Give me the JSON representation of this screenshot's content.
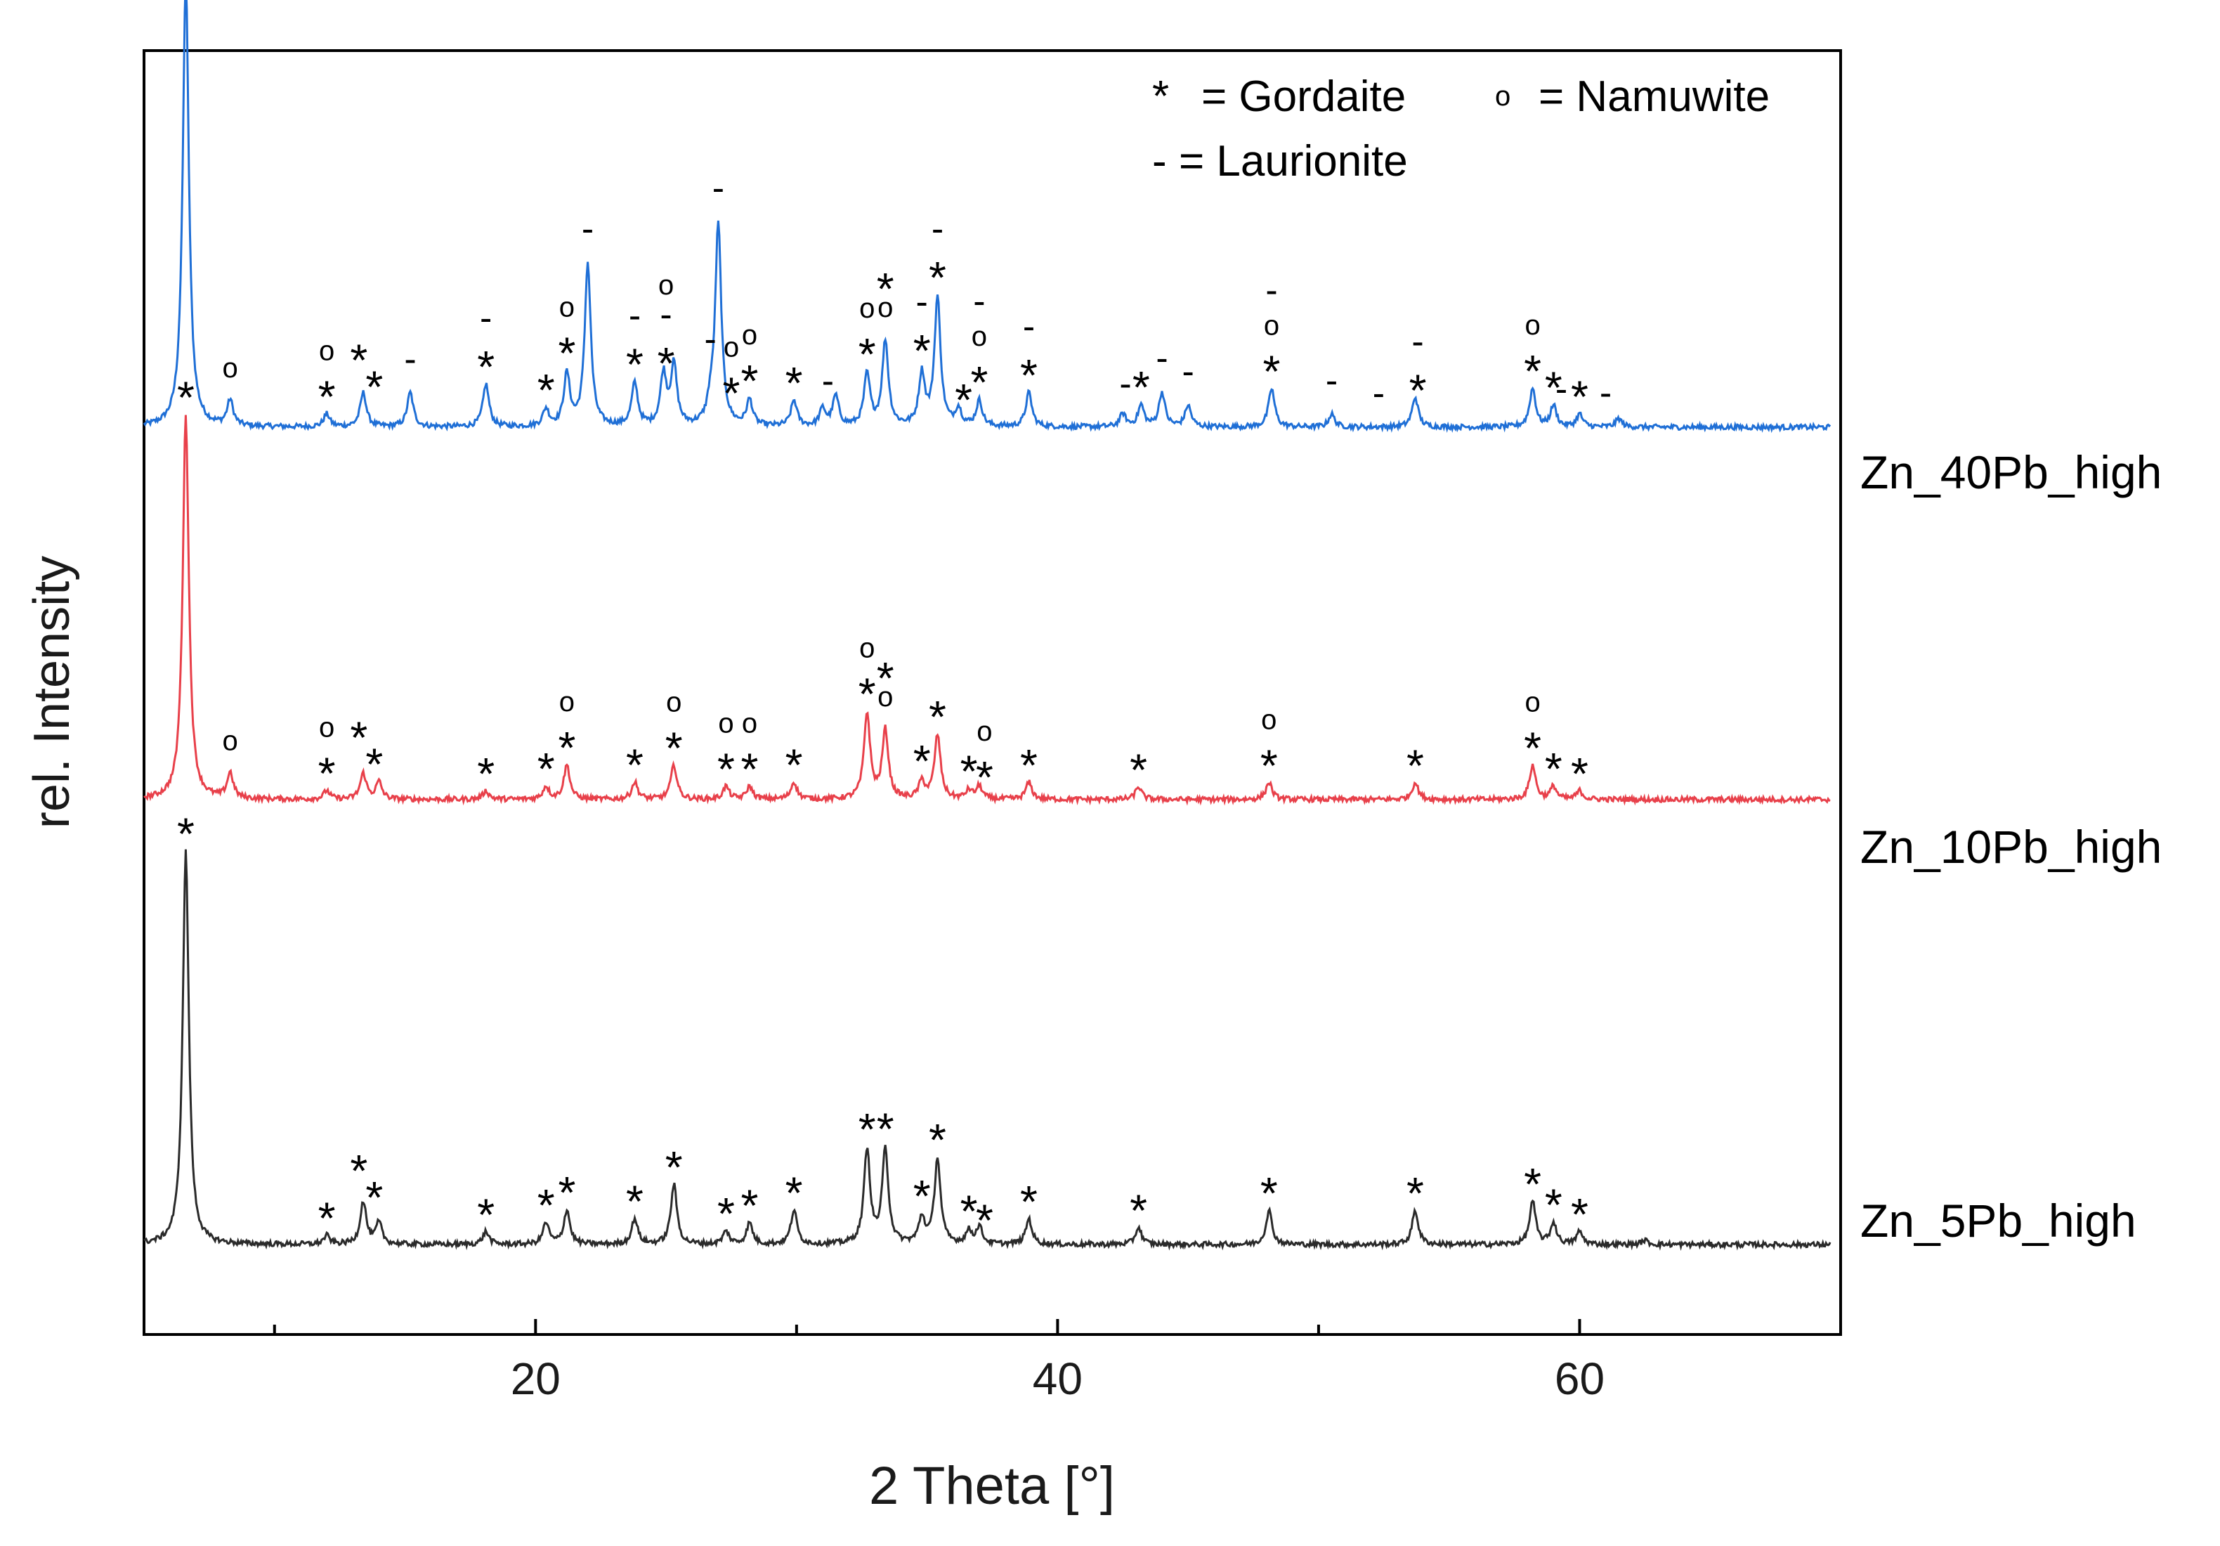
{
  "chart_data": {
    "type": "line",
    "title": "",
    "xlabel": "2 Theta [°]",
    "ylabel": "rel. Intensity",
    "xlim": [
      5,
      70
    ],
    "ylim": [
      0,
      3
    ],
    "xticks": [
      20,
      40,
      60
    ],
    "grid": false,
    "legend": {
      "position": "top-right",
      "entries": [
        {
          "symbol": "*",
          "text": "= Gordaite"
        },
        {
          "symbol": "o",
          "text": "= Namuwite"
        },
        {
          "symbol": "-",
          "text": "= Laurionite"
        }
      ]
    },
    "series": [
      {
        "name": "Zn_40Pb_high",
        "color": "#1f6fd6",
        "baseline": 2.12,
        "peaks": [
          [
            6.6,
            1.05
          ],
          [
            8.3,
            0.06
          ],
          [
            12.0,
            0.03
          ],
          [
            13.4,
            0.08
          ],
          [
            15.2,
            0.08
          ],
          [
            18.1,
            0.1
          ],
          [
            20.4,
            0.04
          ],
          [
            21.2,
            0.12
          ],
          [
            22.0,
            0.38
          ],
          [
            23.8,
            0.1
          ],
          [
            24.9,
            0.12
          ],
          [
            25.3,
            0.14
          ],
          [
            26.7,
            0.04
          ],
          [
            27.0,
            0.47
          ],
          [
            28.2,
            0.06
          ],
          [
            29.9,
            0.06
          ],
          [
            31.0,
            0.04
          ],
          [
            31.5,
            0.07
          ],
          [
            32.7,
            0.12
          ],
          [
            33.4,
            0.2
          ],
          [
            34.8,
            0.12
          ],
          [
            35.4,
            0.3
          ],
          [
            36.2,
            0.04
          ],
          [
            37.0,
            0.06
          ],
          [
            38.9,
            0.08
          ],
          [
            42.5,
            0.03
          ],
          [
            43.2,
            0.05
          ],
          [
            44.0,
            0.08
          ],
          [
            45.0,
            0.05
          ],
          [
            48.2,
            0.09
          ],
          [
            50.5,
            0.03
          ],
          [
            53.7,
            0.07
          ],
          [
            58.2,
            0.09
          ],
          [
            59.0,
            0.05
          ],
          [
            60.0,
            0.03
          ],
          [
            61.5,
            0.02
          ]
        ],
        "annotations": [
          {
            "x": 6.6,
            "symbols": "*"
          },
          {
            "x": 8.3,
            "symbols": "o"
          },
          {
            "x": 12.0,
            "symbols": "o*"
          },
          {
            "x": 13.5,
            "symbols": "**"
          },
          {
            "x": 15.2,
            "symbols": "-"
          },
          {
            "x": 18.1,
            "symbols": "-*"
          },
          {
            "x": 20.4,
            "symbols": "*"
          },
          {
            "x": 21.2,
            "symbols": "o*"
          },
          {
            "x": 22.0,
            "symbols": "-"
          },
          {
            "x": 23.8,
            "symbols": "-*"
          },
          {
            "x": 25.0,
            "symbols": "o-*"
          },
          {
            "x": 26.7,
            "symbols": "-"
          },
          {
            "x": 27.0,
            "symbols": "-"
          },
          {
            "x": 27.5,
            "symbols": "o*"
          },
          {
            "x": 28.2,
            "symbols": "o*"
          },
          {
            "x": 29.9,
            "symbols": "*"
          },
          {
            "x": 31.2,
            "symbols": "-"
          },
          {
            "x": 32.7,
            "symbols": "o*"
          },
          {
            "x": 33.4,
            "symbols": "*o"
          },
          {
            "x": 34.8,
            "symbols": "-*"
          },
          {
            "x": 35.4,
            "symbols": "-*"
          },
          {
            "x": 36.4,
            "symbols": "*"
          },
          {
            "x": 37.0,
            "symbols": "-o*"
          },
          {
            "x": 38.9,
            "symbols": "-*"
          },
          {
            "x": 42.6,
            "symbols": "-"
          },
          {
            "x": 43.2,
            "symbols": "*"
          },
          {
            "x": 44.0,
            "symbols": "-"
          },
          {
            "x": 45.0,
            "symbols": "-"
          },
          {
            "x": 48.2,
            "symbols": "-o*"
          },
          {
            "x": 50.5,
            "symbols": "-"
          },
          {
            "x": 52.3,
            "symbols": "-"
          },
          {
            "x": 53.8,
            "symbols": "-*"
          },
          {
            "x": 58.2,
            "symbols": "o*"
          },
          {
            "x": 59.0,
            "symbols": "*"
          },
          {
            "x": 59.3,
            "symbols": "-"
          },
          {
            "x": 60.0,
            "symbols": "*"
          },
          {
            "x": 61.0,
            "symbols": "-"
          }
        ]
      },
      {
        "name": "Zn_10Pb_high",
        "color": "#e8404a",
        "baseline": 1.25,
        "peaks": [
          [
            6.6,
            0.9
          ],
          [
            8.3,
            0.06
          ],
          [
            12.0,
            0.02
          ],
          [
            13.4,
            0.06
          ],
          [
            14.0,
            0.04
          ],
          [
            18.1,
            0.02
          ],
          [
            20.4,
            0.03
          ],
          [
            21.2,
            0.08
          ],
          [
            23.8,
            0.04
          ],
          [
            25.3,
            0.08
          ],
          [
            27.3,
            0.03
          ],
          [
            28.2,
            0.03
          ],
          [
            29.9,
            0.04
          ],
          [
            32.7,
            0.2
          ],
          [
            33.4,
            0.16
          ],
          [
            34.8,
            0.04
          ],
          [
            35.4,
            0.15
          ],
          [
            36.6,
            0.02
          ],
          [
            37.0,
            0.03
          ],
          [
            38.9,
            0.04
          ],
          [
            43.1,
            0.03
          ],
          [
            48.1,
            0.04
          ],
          [
            53.7,
            0.04
          ],
          [
            58.2,
            0.08
          ],
          [
            59.0,
            0.03
          ],
          [
            60.0,
            0.02
          ]
        ],
        "annotations": [
          {
            "x": 6.6,
            "symbols": "*"
          },
          {
            "x": 8.3,
            "symbols": "o"
          },
          {
            "x": 12.0,
            "symbols": "o*"
          },
          {
            "x": 13.5,
            "symbols": "**"
          },
          {
            "x": 18.1,
            "symbols": "*"
          },
          {
            "x": 20.4,
            "symbols": "*"
          },
          {
            "x": 21.2,
            "symbols": "o*"
          },
          {
            "x": 23.8,
            "symbols": "*"
          },
          {
            "x": 25.3,
            "symbols": "o*"
          },
          {
            "x": 27.3,
            "symbols": "o*"
          },
          {
            "x": 28.2,
            "symbols": "o*"
          },
          {
            "x": 29.9,
            "symbols": "*"
          },
          {
            "x": 32.7,
            "symbols": "o*"
          },
          {
            "x": 33.4,
            "symbols": "*o"
          },
          {
            "x": 34.8,
            "symbols": "*"
          },
          {
            "x": 35.4,
            "symbols": "*"
          },
          {
            "x": 36.6,
            "symbols": "*"
          },
          {
            "x": 37.2,
            "symbols": "o*"
          },
          {
            "x": 38.9,
            "symbols": "*"
          },
          {
            "x": 43.1,
            "symbols": "*"
          },
          {
            "x": 48.1,
            "symbols": "o*"
          },
          {
            "x": 53.7,
            "symbols": "*"
          },
          {
            "x": 58.2,
            "symbols": "o*"
          },
          {
            "x": 59.0,
            "symbols": "*"
          },
          {
            "x": 60.0,
            "symbols": "*"
          }
        ]
      },
      {
        "name": "Zn_5Pb_high",
        "color": "#2a2a2a",
        "baseline": 0.21,
        "peaks": [
          [
            6.6,
            0.92
          ],
          [
            12.0,
            0.02
          ],
          [
            13.4,
            0.1
          ],
          [
            14.0,
            0.05
          ],
          [
            18.1,
            0.03
          ],
          [
            20.4,
            0.05
          ],
          [
            21.2,
            0.08
          ],
          [
            23.8,
            0.06
          ],
          [
            25.3,
            0.14
          ],
          [
            27.3,
            0.03
          ],
          [
            28.2,
            0.05
          ],
          [
            29.9,
            0.08
          ],
          [
            32.7,
            0.22
          ],
          [
            33.4,
            0.22
          ],
          [
            34.8,
            0.06
          ],
          [
            35.4,
            0.2
          ],
          [
            36.6,
            0.03
          ],
          [
            37.0,
            0.04
          ],
          [
            38.9,
            0.06
          ],
          [
            43.1,
            0.04
          ],
          [
            48.1,
            0.08
          ],
          [
            53.7,
            0.08
          ],
          [
            58.2,
            0.1
          ],
          [
            59.0,
            0.05
          ],
          [
            60.0,
            0.03
          ],
          [
            62.5,
            0.01
          ]
        ],
        "annotations": [
          {
            "x": 6.6,
            "symbols": "*"
          },
          {
            "x": 12.0,
            "symbols": "*"
          },
          {
            "x": 13.5,
            "symbols": "**"
          },
          {
            "x": 18.1,
            "symbols": "*"
          },
          {
            "x": 20.4,
            "symbols": "*"
          },
          {
            "x": 21.2,
            "symbols": "*"
          },
          {
            "x": 23.8,
            "symbols": "*"
          },
          {
            "x": 25.3,
            "symbols": "*"
          },
          {
            "x": 27.3,
            "symbols": "*"
          },
          {
            "x": 28.2,
            "symbols": "*"
          },
          {
            "x": 29.9,
            "symbols": "*"
          },
          {
            "x": 32.7,
            "symbols": "*"
          },
          {
            "x": 33.4,
            "symbols": "*"
          },
          {
            "x": 34.8,
            "symbols": "*"
          },
          {
            "x": 35.4,
            "symbols": "*"
          },
          {
            "x": 36.6,
            "symbols": "*"
          },
          {
            "x": 37.2,
            "symbols": "*"
          },
          {
            "x": 38.9,
            "symbols": "*"
          },
          {
            "x": 43.1,
            "symbols": "*"
          },
          {
            "x": 48.1,
            "symbols": "*"
          },
          {
            "x": 53.7,
            "symbols": "*"
          },
          {
            "x": 58.2,
            "symbols": "*"
          },
          {
            "x": 59.0,
            "symbols": "*"
          },
          {
            "x": 60.0,
            "symbols": "*"
          }
        ]
      }
    ]
  }
}
